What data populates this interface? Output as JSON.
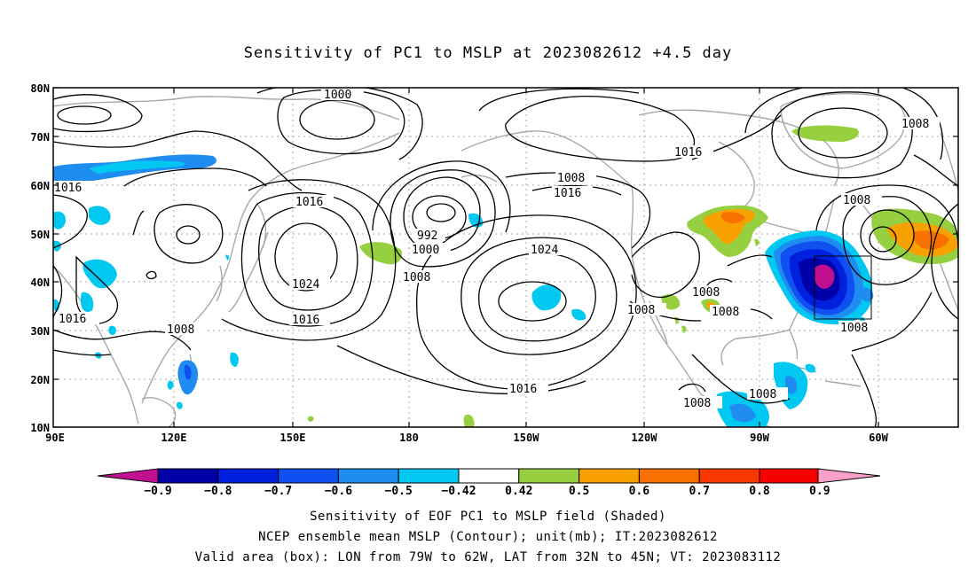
{
  "title": "Sensitivity of PC1 to MSLP at 2023082612 +4.5 day",
  "lat_ticks": [
    "80N",
    "70N",
    "60N",
    "50N",
    "40N",
    "30N",
    "20N",
    "10N"
  ],
  "lon_ticks": [
    "90E",
    "120E",
    "150E",
    "180",
    "150W",
    "120W",
    "90W",
    "60W"
  ],
  "contour_labels": {
    "l1000a": "1000",
    "l1016a": "1016",
    "l1008a": "1008",
    "l1016b": "1016",
    "l1008b": "1008",
    "l1016c": "1016",
    "l1024a": "1024",
    "l1016d": "1016",
    "l1008c": "1008",
    "l992": "992",
    "l1000b": "1000",
    "l1008d": "1008",
    "l1024b": "1024",
    "l1016e": "1016",
    "l1008e": "1008",
    "l1008f": "1008",
    "l1008g": "1008",
    "l1008h": "1008",
    "l1008i": "1008",
    "l1008j": "1008",
    "l1008k": "1008",
    "l1008l": "1008"
  },
  "colorbar": {
    "labels": [
      "−0.9",
      "−0.8",
      "−0.7",
      "−0.6",
      "−0.5",
      "−0.42",
      "0.42",
      "0.5",
      "0.6",
      "0.7",
      "0.8",
      "0.9"
    ],
    "colors": [
      "#c0108f",
      "#0000a8",
      "#0020e0",
      "#1050f0",
      "#1e8cf0",
      "#00c8f0",
      "#ffffff",
      "#96d040",
      "#f8a000",
      "#f87000",
      "#f83800",
      "#f80000",
      "#f8a0c8"
    ]
  },
  "caption": {
    "line1": "Sensitivity of EOF PC1 to MSLP field (Shaded)",
    "line2": "NCEP ensemble mean MSLP (Contour); unit(mb); IT:2023082612",
    "line3": "Valid area (box): LON from 79W to 62W, LAT from 32N to 45N; VT: 2023083112"
  }
}
